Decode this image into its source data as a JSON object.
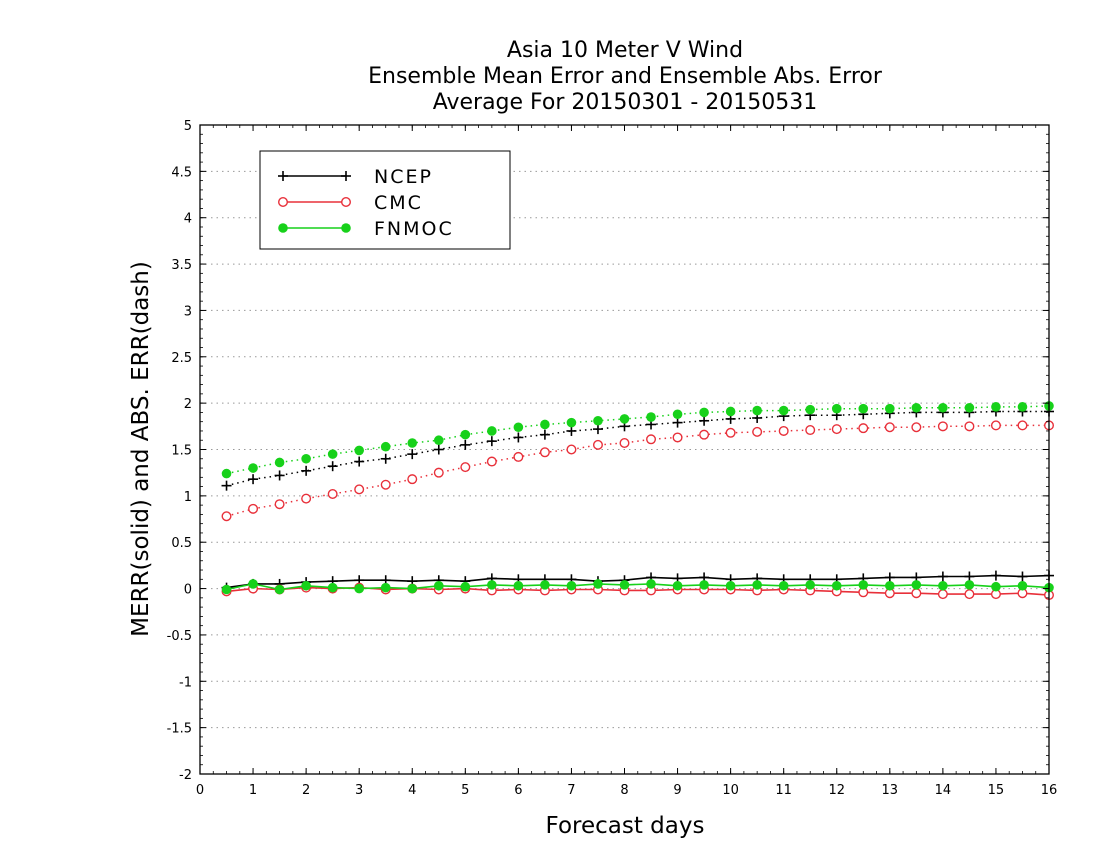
{
  "chart_data": {
    "type": "line",
    "title": [
      "Asia 10 Meter V Wind",
      "Ensemble Mean Error and Ensemble Abs. Error",
      "Average For 20150301 - 20150531"
    ],
    "xlabel": "Forecast days",
    "ylabel": "MERR(solid) and ABS. ERR(dash)",
    "xlim": [
      0,
      16
    ],
    "ylim": [
      -2,
      5
    ],
    "xticks": [
      0,
      1,
      2,
      3,
      4,
      5,
      6,
      7,
      8,
      9,
      10,
      11,
      12,
      13,
      14,
      15,
      16
    ],
    "yticks": [
      -2,
      -1.5,
      -1,
      -0.5,
      0,
      0.5,
      1,
      1.5,
      2,
      2.5,
      3,
      3.5,
      4,
      4.5,
      5
    ],
    "ytick_labels": [
      "-2",
      "-1.5",
      "-1",
      "-0.5",
      "0",
      "0.5",
      "1",
      "1.5",
      "2",
      "2.5",
      "3",
      "3.5",
      "4",
      "4.5",
      "5"
    ],
    "grid": "horizontal dotted",
    "legend_position": "top-left",
    "x": [
      0.5,
      1,
      1.5,
      2,
      2.5,
      3,
      3.5,
      4,
      4.5,
      5,
      5.5,
      6,
      6.5,
      7,
      7.5,
      8,
      8.5,
      9,
      9.5,
      10,
      10.5,
      11,
      11.5,
      12,
      12.5,
      13,
      13.5,
      14,
      14.5,
      15,
      15.5,
      16
    ],
    "series": [
      {
        "name": "NCEP",
        "color": "#000000",
        "marker": "plus",
        "merr": [
          0.01,
          0.05,
          0.05,
          0.07,
          0.08,
          0.09,
          0.09,
          0.08,
          0.09,
          0.08,
          0.11,
          0.1,
          0.1,
          0.1,
          0.08,
          0.09,
          0.12,
          0.11,
          0.12,
          0.1,
          0.11,
          0.1,
          0.1,
          0.1,
          0.11,
          0.12,
          0.12,
          0.13,
          0.13,
          0.14,
          0.13,
          0.14
        ],
        "abs_err": [
          1.11,
          1.18,
          1.22,
          1.27,
          1.32,
          1.37,
          1.4,
          1.45,
          1.5,
          1.55,
          1.59,
          1.63,
          1.66,
          1.7,
          1.72,
          1.75,
          1.77,
          1.79,
          1.81,
          1.83,
          1.84,
          1.86,
          1.87,
          1.87,
          1.88,
          1.89,
          1.9,
          1.9,
          1.9,
          1.91,
          1.91,
          1.91
        ]
      },
      {
        "name": "CMC",
        "color": "#e8303a",
        "marker": "open-circle",
        "merr": [
          -0.03,
          0.0,
          -0.01,
          0.01,
          0.0,
          0.01,
          -0.01,
          0.0,
          -0.01,
          0.0,
          -0.02,
          -0.01,
          -0.02,
          -0.01,
          -0.01,
          -0.02,
          -0.02,
          -0.01,
          -0.01,
          -0.01,
          -0.02,
          -0.01,
          -0.02,
          -0.03,
          -0.04,
          -0.05,
          -0.05,
          -0.06,
          -0.06,
          -0.06,
          -0.05,
          -0.07
        ],
        "abs_err": [
          0.78,
          0.86,
          0.91,
          0.97,
          1.02,
          1.07,
          1.12,
          1.18,
          1.25,
          1.31,
          1.37,
          1.42,
          1.47,
          1.5,
          1.55,
          1.57,
          1.61,
          1.63,
          1.66,
          1.68,
          1.69,
          1.7,
          1.71,
          1.72,
          1.73,
          1.74,
          1.74,
          1.75,
          1.75,
          1.76,
          1.76,
          1.76
        ]
      },
      {
        "name": "FNMOC",
        "color": "#17d11a",
        "marker": "filled-circle",
        "merr": [
          -0.01,
          0.05,
          -0.01,
          0.03,
          0.01,
          0.0,
          0.01,
          0.0,
          0.03,
          0.02,
          0.04,
          0.03,
          0.04,
          0.03,
          0.05,
          0.04,
          0.05,
          0.03,
          0.04,
          0.03,
          0.04,
          0.03,
          0.04,
          0.03,
          0.04,
          0.03,
          0.04,
          0.03,
          0.04,
          0.02,
          0.03,
          0.01
        ],
        "abs_err": [
          1.24,
          1.3,
          1.36,
          1.4,
          1.45,
          1.49,
          1.53,
          1.57,
          1.6,
          1.66,
          1.7,
          1.74,
          1.77,
          1.79,
          1.81,
          1.83,
          1.85,
          1.88,
          1.9,
          1.91,
          1.92,
          1.92,
          1.93,
          1.94,
          1.94,
          1.94,
          1.95,
          1.95,
          1.95,
          1.96,
          1.96,
          1.97
        ]
      }
    ]
  }
}
